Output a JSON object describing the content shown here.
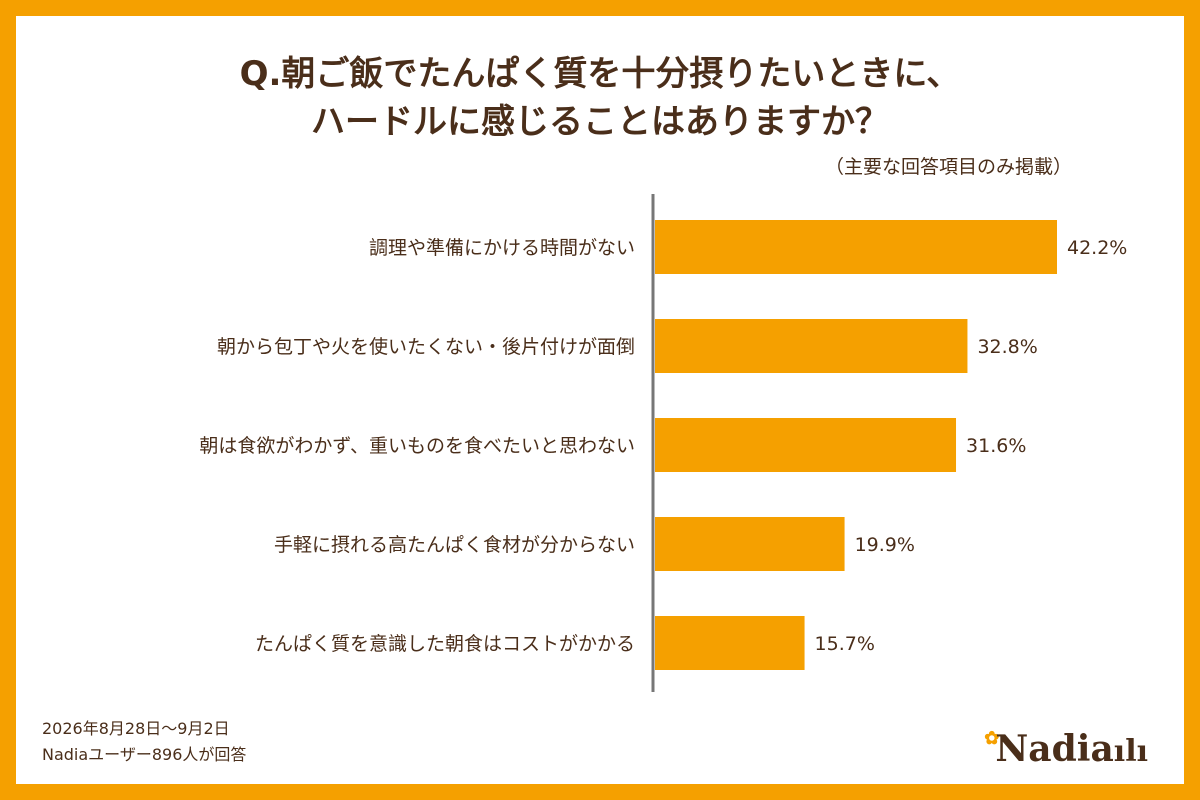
{
  "title": {
    "line1": "Q.朝ご飯でたんぱく質を十分摂りたいときに、",
    "line2": "ハードルに感じることはありますか？"
  },
  "note": "（主要な回答項目のみ掲載）",
  "chart_data": {
    "type": "bar",
    "orientation": "horizontal",
    "categories": [
      "調理や準備にかける時間がない",
      "朝から包丁や火を使いたくない・後片付けが面倒",
      "朝は食欲がわかず、重いものを食べたいと思わない",
      "手軽に摂れる高たんぱく食材が分からない",
      "たんぱく質を意識した朝食はコストがかかる"
    ],
    "values": [
      42.2,
      32.8,
      31.6,
      19.9,
      15.7
    ],
    "value_labels": [
      "42.2%",
      "32.8%",
      "31.6%",
      "19.9%",
      "15.7%"
    ],
    "unit": "%",
    "bar_color": "#F5A000",
    "grid": false,
    "xlim": [
      0,
      42.2
    ]
  },
  "footer": {
    "period": "2026年8月28日～9月2日",
    "respondents": "Nadiaユーザー896人が回答"
  },
  "logo": {
    "text": "Nadia",
    "icon": "fork-flower-logo"
  },
  "colors": {
    "frame": "#F5A000",
    "text": "#4A2E1A",
    "axis": "#777777"
  }
}
